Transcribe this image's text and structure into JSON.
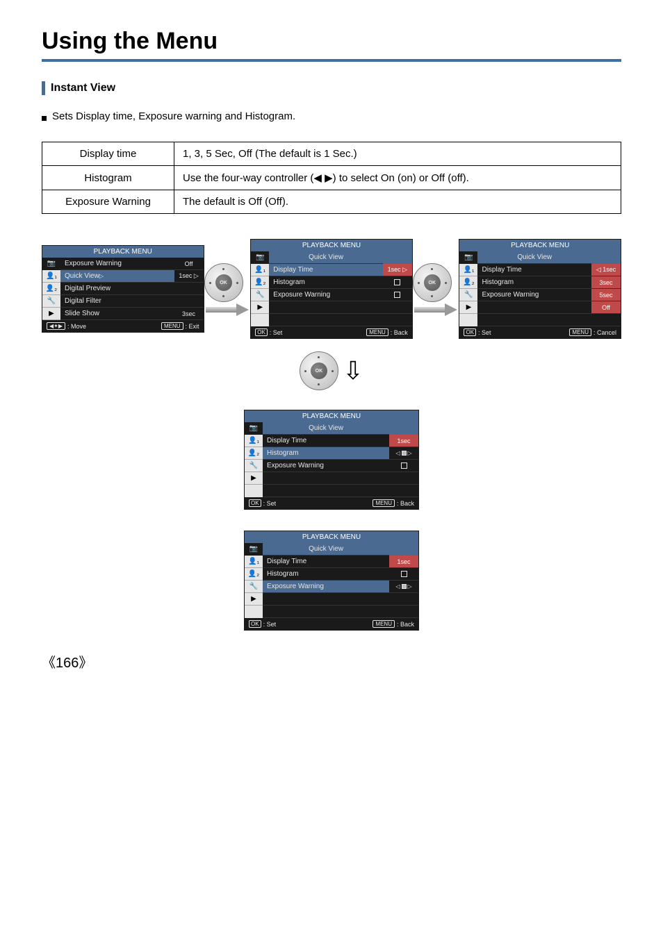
{
  "page": {
    "title": "Using the Menu",
    "section": "Instant View",
    "bullet": "Sets Display time, Exposure warning and Histogram.",
    "page_number": "《166》"
  },
  "defs": {
    "rows": [
      {
        "label": "Display time",
        "desc_pre": "1, 3, 5 Sec, Off (The default is 1 Sec.)",
        "desc_mid": "",
        "desc_post": ""
      },
      {
        "label": "Histogram",
        "desc_pre": "Use the four-way controller (",
        "desc_mid": "◀ ▶",
        "desc_post": ") to select On (on) or Off (off)."
      },
      {
        "label": "Exposure Warning",
        "desc_pre": "The default is Off (Off).",
        "desc_mid": "",
        "desc_post": ""
      }
    ]
  },
  "colors": {
    "header_blue": "#4a6a92",
    "highlight_red": "#c04a4a",
    "title_rule": "#3d6ea8"
  },
  "tabs": [
    "📷",
    "👤₁",
    "👤₂",
    "🔧",
    "▶"
  ],
  "screens": {
    "s1": {
      "header": "PLAYBACK MENU",
      "rows": [
        {
          "label": "Exposure Warning",
          "value": "Off",
          "highlight": false
        },
        {
          "label": "Quick View",
          "value": "1sec",
          "highlight": true,
          "arrow_right": true
        },
        {
          "label": "Digital Preview",
          "value": "",
          "highlight": false
        },
        {
          "label": "Digital Filter",
          "value": "",
          "highlight": false
        },
        {
          "label": "Slide Show",
          "value": "3sec",
          "highlight": false
        }
      ],
      "footer": {
        "left": ": Move",
        "left_key": "◀✦▶",
        "right": ": Exit",
        "right_key": "MENU"
      }
    },
    "s2": {
      "header": "PLAYBACK MENU",
      "subhead": "Quick View",
      "rows": [
        {
          "label": "Display Time",
          "value": "1sec",
          "highlight": true,
          "arrow_right": true,
          "value_hl": true
        },
        {
          "label": "Histogram",
          "value": "box",
          "highlight": false
        },
        {
          "label": "Exposure Warning",
          "value": "box",
          "highlight": false
        },
        {
          "label": "",
          "value": "",
          "highlight": false
        },
        {
          "label": "",
          "value": "",
          "highlight": false
        }
      ],
      "footer": {
        "left": ": Set",
        "left_key": "OK",
        "right": ": Back",
        "right_key": "MENU"
      }
    },
    "s3": {
      "header": "PLAYBACK MENU",
      "subhead": "Quick View",
      "rows": [
        {
          "label": "Display Time",
          "value": "1sec",
          "highlight": false,
          "value_hl": true,
          "arrow_left": true
        },
        {
          "label": "Histogram",
          "value": "3sec",
          "highlight": false,
          "value_hl": true
        },
        {
          "label": "Exposure Warning",
          "value": "5sec",
          "highlight": false,
          "value_hl": true
        },
        {
          "label": "",
          "value": "Off",
          "highlight": false,
          "value_hl": true
        },
        {
          "label": "",
          "value": "",
          "highlight": false
        }
      ],
      "footer": {
        "left": ": Set",
        "left_key": "OK",
        "right": ": Cancel",
        "right_key": "MENU"
      }
    },
    "s4": {
      "header": "PLAYBACK MENU",
      "subhead": "Quick View",
      "rows": [
        {
          "label": "Display Time",
          "value": "1sec",
          "highlight": false,
          "value_hl": true
        },
        {
          "label": "Histogram",
          "value": "arrows",
          "highlight": true
        },
        {
          "label": "Exposure Warning",
          "value": "box",
          "highlight": false
        },
        {
          "label": "",
          "value": "",
          "highlight": false
        },
        {
          "label": "",
          "value": "",
          "highlight": false
        }
      ],
      "footer": {
        "left": ": Set",
        "left_key": "OK",
        "right": ": Back",
        "right_key": "MENU"
      }
    },
    "s5": {
      "header": "PLAYBACK MENU",
      "subhead": "Quick View",
      "rows": [
        {
          "label": "Display Time",
          "value": "1sec",
          "highlight": false,
          "value_hl": true
        },
        {
          "label": "Histogram",
          "value": "box",
          "highlight": false
        },
        {
          "label": "Exposure Warning",
          "value": "arrows",
          "highlight": true
        },
        {
          "label": "",
          "value": "",
          "highlight": false
        },
        {
          "label": "",
          "value": "",
          "highlight": false
        }
      ],
      "footer": {
        "left": ": Set",
        "left_key": "OK",
        "right": ": Back",
        "right_key": "MENU"
      }
    }
  },
  "ok_label": "OK"
}
